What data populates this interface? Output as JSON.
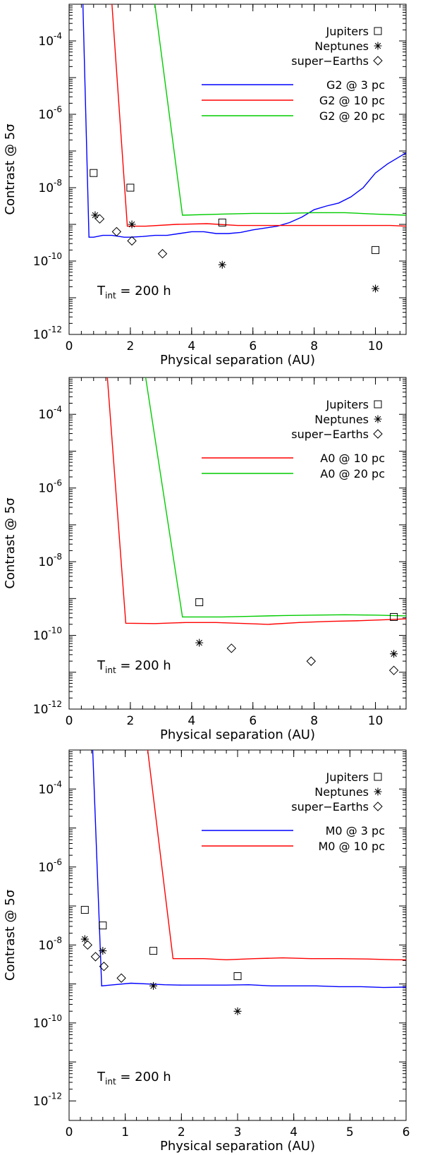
{
  "chart_data": [
    {
      "type": "line",
      "title": "",
      "xlabel": "Physical separation (AU)",
      "ylabel": "Contrast @ 5σ",
      "x_ticks": [
        0,
        2,
        4,
        6,
        8,
        10
      ],
      "xlim": [
        0,
        11
      ],
      "ylim_log10": [
        -12,
        -3
      ],
      "y_ticks": [
        "10-12",
        "10-10",
        "10-8",
        "10-6",
        "10-4"
      ],
      "y_tick_exponents": [
        -12,
        -10,
        -8,
        -6,
        -4
      ],
      "annotation": {
        "main": "T",
        "sub": "int",
        "rest": " = 200 h"
      },
      "legend_position": "top-right",
      "legend_markers": [
        {
          "label": "Jupiters",
          "symbol": "square"
        },
        {
          "label": "Neptunes",
          "symbol": "asterisk"
        },
        {
          "label": "super−Earths",
          "symbol": "diamond"
        }
      ],
      "series": [
        {
          "name": "G2 @ 3 pc",
          "color": "#0000ff",
          "x": [
            0.45,
            0.65,
            0.8,
            1.1,
            1.4,
            1.8,
            2.0,
            2.4,
            2.8,
            3.2,
            3.6,
            4.0,
            4.4,
            4.8,
            5.2,
            5.6,
            6.0,
            6.4,
            6.8,
            7.2,
            7.6,
            8.0,
            8.4,
            8.8,
            9.2,
            9.6,
            10.0,
            10.4,
            10.8,
            11.0
          ],
          "log10_y": [
            -3,
            -9.35,
            -9.35,
            -9.3,
            -9.3,
            -9.35,
            -9.35,
            -9.33,
            -9.3,
            -9.3,
            -9.25,
            -9.2,
            -9.2,
            -9.25,
            -9.25,
            -9.22,
            -9.15,
            -9.1,
            -9.05,
            -8.95,
            -8.8,
            -8.6,
            -8.5,
            -8.42,
            -8.25,
            -8.0,
            -7.6,
            -7.35,
            -7.15,
            -7.05
          ]
        },
        {
          "name": "G2 @ 10 pc",
          "color": "#ff0000",
          "x": [
            1.4,
            1.9,
            2.5,
            3.5,
            4.5,
            5.5,
            6.5,
            7.5,
            8.5,
            9.5,
            10.5,
            11.0
          ],
          "log10_y": [
            -3,
            -9.05,
            -9.05,
            -9.0,
            -8.98,
            -9.03,
            -9.03,
            -9.03,
            -9.03,
            -9.03,
            -9.03,
            -9.05
          ]
        },
        {
          "name": "G2 @ 20 pc",
          "color": "#00cc00",
          "x": [
            2.8,
            3.7,
            5.0,
            6.0,
            7.0,
            8.0,
            9.0,
            10.0,
            11.0
          ],
          "log10_y": [
            -3,
            -8.75,
            -8.72,
            -8.7,
            -8.7,
            -8.68,
            -8.68,
            -8.72,
            -8.75
          ]
        }
      ],
      "markers": {
        "Jupiters": {
          "x": [
            0.8,
            2.0,
            5.0,
            10.0
          ],
          "log10_y": [
            -7.6,
            -8.0,
            -8.95,
            -9.7
          ]
        },
        "Neptunes": {
          "x": [
            0.85,
            2.05,
            5.0,
            10.0
          ],
          "log10_y": [
            -8.75,
            -9.0,
            -10.1,
            -10.75
          ]
        },
        "super-Earths": {
          "x": [
            1.0,
            1.55,
            2.05,
            3.05
          ],
          "log10_y": [
            -8.85,
            -9.2,
            -9.45,
            -9.8
          ]
        }
      }
    },
    {
      "type": "line",
      "title": "",
      "xlabel": "Physical separation (AU)",
      "ylabel": "Contrast @ 5σ",
      "x_ticks": [
        0,
        2,
        4,
        6,
        8,
        10
      ],
      "xlim": [
        0,
        11
      ],
      "ylim_log10": [
        -12,
        -3
      ],
      "y_ticks": [
        "10-12",
        "10-10",
        "10-8",
        "10-6",
        "10-4"
      ],
      "y_tick_exponents": [
        -12,
        -10,
        -8,
        -6,
        -4
      ],
      "annotation": {
        "main": "T",
        "sub": "int",
        "rest": " = 200 h"
      },
      "legend_position": "top-right",
      "legend_markers": [
        {
          "label": "Jupiters",
          "symbol": "square"
        },
        {
          "label": "Neptunes",
          "symbol": "asterisk"
        },
        {
          "label": "super−Earths",
          "symbol": "diamond"
        }
      ],
      "series": [
        {
          "name": "A0 @ 10 pc",
          "color": "#ff0000",
          "x": [
            1.25,
            1.85,
            2.8,
            3.8,
            4.8,
            5.8,
            6.5,
            7.5,
            8.5,
            9.5,
            10.5,
            11.0
          ],
          "log10_y": [
            -3,
            -9.67,
            -9.68,
            -9.65,
            -9.65,
            -9.68,
            -9.7,
            -9.65,
            -9.62,
            -9.6,
            -9.57,
            -9.55
          ]
        },
        {
          "name": "A0 @ 20 pc",
          "color": "#00cc00",
          "x": [
            2.5,
            3.7,
            5.0,
            6.0,
            7.0,
            8.0,
            9.0,
            10.0,
            11.0
          ],
          "log10_y": [
            -3,
            -9.5,
            -9.5,
            -9.48,
            -9.46,
            -9.45,
            -9.44,
            -9.45,
            -9.47
          ]
        }
      ],
      "markers": {
        "Jupiters": {
          "x": [
            4.25,
            10.6
          ],
          "log10_y": [
            -9.1,
            -9.5
          ]
        },
        "Neptunes": {
          "x": [
            4.25,
            10.6
          ],
          "log10_y": [
            -10.2,
            -10.5
          ]
        },
        "super-Earths": {
          "x": [
            5.3,
            7.9,
            10.6
          ],
          "log10_y": [
            -10.35,
            -10.7,
            -10.95
          ]
        }
      }
    },
    {
      "type": "line",
      "title": "",
      "xlabel": "Physical separation (AU)",
      "ylabel": "Contrast @ 5σ",
      "x_ticks": [
        0,
        1,
        2,
        3,
        4,
        5,
        6
      ],
      "xlim": [
        0,
        6
      ],
      "ylim_log10": [
        -12.5,
        -3
      ],
      "y_ticks": [
        "10-12",
        "10-10",
        "10-8",
        "10-6",
        "10-4"
      ],
      "y_tick_exponents": [
        -12,
        -10,
        -8,
        -6,
        -4
      ],
      "annotation": {
        "main": "T",
        "sub": "int",
        "rest": " = 200 h"
      },
      "legend_position": "top-right",
      "legend_markers": [
        {
          "label": "Jupiters",
          "symbol": "square"
        },
        {
          "label": "Neptunes",
          "symbol": "asterisk"
        },
        {
          "label": "super−Earths",
          "symbol": "diamond"
        }
      ],
      "series": [
        {
          "name": "M0 @ 3 pc",
          "color": "#0000ff",
          "x": [
            0.42,
            0.58,
            0.8,
            1.1,
            1.4,
            1.7,
            2.0,
            2.4,
            2.8,
            3.2,
            3.6,
            4.0,
            4.4,
            4.8,
            5.2,
            5.6,
            6.0
          ],
          "log10_y": [
            -3,
            -9.05,
            -9.02,
            -8.98,
            -9.0,
            -9.02,
            -9.03,
            -9.03,
            -9.03,
            -9.02,
            -9.05,
            -9.05,
            -9.05,
            -9.07,
            -9.07,
            -9.09,
            -9.08
          ]
        },
        {
          "name": "M0 @ 10 pc",
          "color": "#ff0000",
          "x": [
            1.4,
            1.85,
            2.4,
            2.8,
            3.3,
            3.8,
            4.3,
            4.8,
            5.3,
            5.8,
            6.0
          ],
          "log10_y": [
            -3,
            -8.35,
            -8.35,
            -8.38,
            -8.35,
            -8.33,
            -8.35,
            -8.35,
            -8.36,
            -8.38,
            -8.38
          ]
        }
      ],
      "markers": {
        "Jupiters": {
          "x": [
            0.28,
            0.6,
            1.5,
            3.0
          ],
          "log10_y": [
            -7.1,
            -7.5,
            -8.15,
            -8.8
          ]
        },
        "Neptunes": {
          "x": [
            0.28,
            0.6,
            1.5,
            3.0
          ],
          "log10_y": [
            -7.85,
            -8.15,
            -9.05,
            -9.7
          ]
        },
        "super-Earths": {
          "x": [
            0.33,
            0.47,
            0.62,
            0.93
          ],
          "log10_y": [
            -8.0,
            -8.3,
            -8.55,
            -8.85
          ]
        }
      }
    }
  ]
}
